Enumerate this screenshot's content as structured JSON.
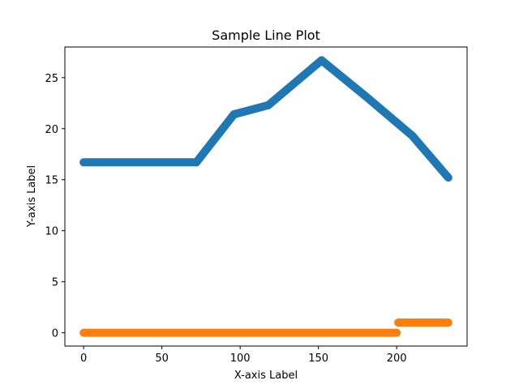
{
  "chart_data": {
    "type": "scatter",
    "title": "Sample Line Plot",
    "xlabel": "X-axis Label",
    "ylabel": "Y-axis Label",
    "xlim": [
      -12,
      245
    ],
    "ylim": [
      -1.3,
      28
    ],
    "xticks": [
      0,
      50,
      100,
      150,
      200
    ],
    "yticks": [
      0,
      5,
      10,
      15,
      20,
      25
    ],
    "grid": false,
    "legend": "none",
    "series": [
      {
        "color": "#1f77b4",
        "segments": [
          {
            "x": [
              0,
              72
            ],
            "y": [
              16.7,
              16.7
            ]
          },
          {
            "x": [
              72,
              96
            ],
            "y": [
              16.7,
              21.4
            ]
          },
          {
            "x": [
              96,
              118
            ],
            "y": [
              21.4,
              22.3
            ]
          },
          {
            "x": [
              118,
              152
            ],
            "y": [
              22.3,
              26.7
            ]
          },
          {
            "x": [
              152,
              180
            ],
            "y": [
              26.7,
              23.2
            ]
          },
          {
            "x": [
              180,
              210
            ],
            "y": [
              23.2,
              19.3
            ]
          },
          {
            "x": [
              210,
              233
            ],
            "y": [
              19.3,
              15.2
            ]
          }
        ]
      },
      {
        "color": "#ff7f0e",
        "segments": [
          {
            "x": [
              0,
              200
            ],
            "y": [
              0,
              0
            ]
          },
          {
            "x": [
              201,
              233
            ],
            "y": [
              1,
              1
            ]
          }
        ]
      }
    ]
  }
}
